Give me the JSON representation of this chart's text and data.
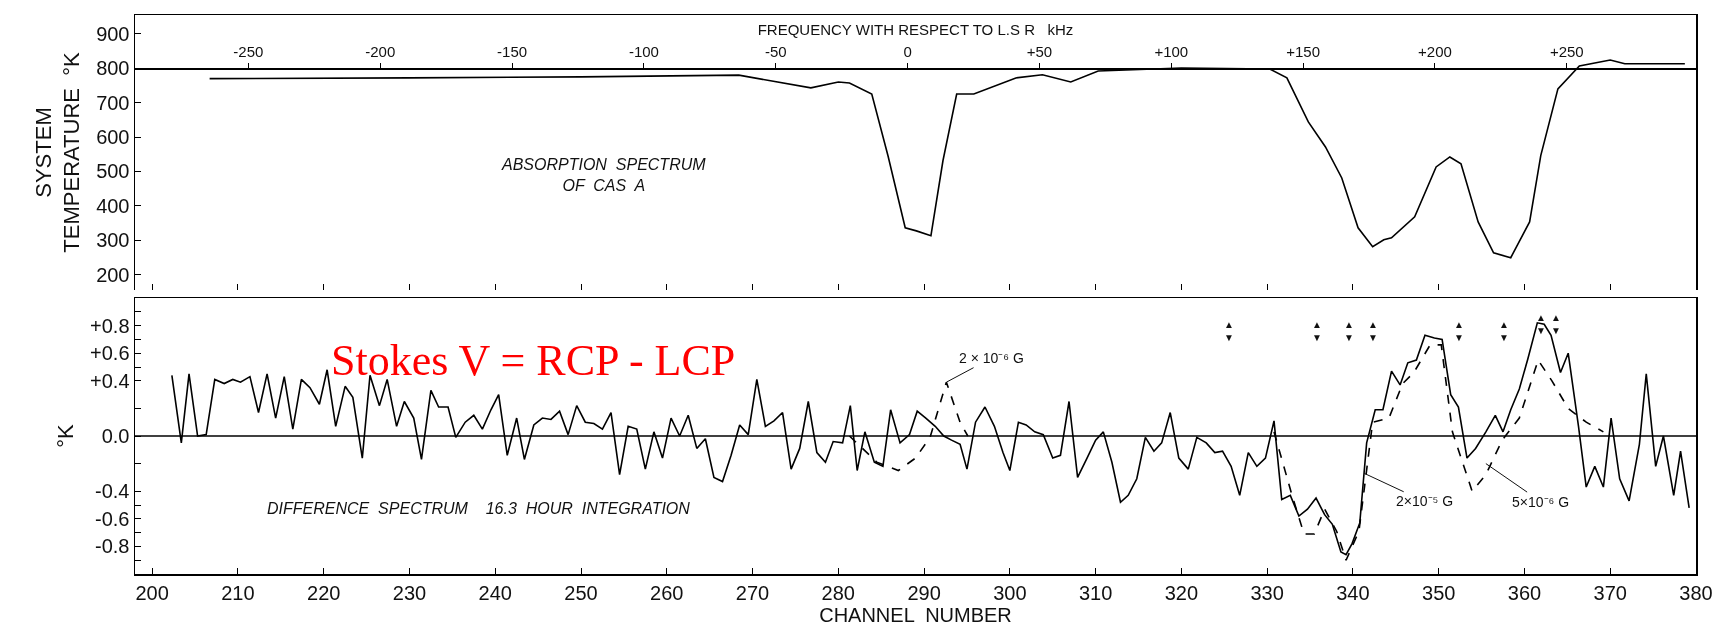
{
  "chart_data": [
    {
      "type": "line",
      "ylabel": "SYSTEM\nTEMPERATURE  °K",
      "x2label": "FREQUENCY WITH RESPECT TO L.S R   kHz",
      "xlim": [
        198,
        380
      ],
      "ylim": [
        155,
        955
      ],
      "x2lim": [
        -293,
        299
      ],
      "tick_labels": "y",
      "xticks": [
        {
          "value": 200,
          "label": null
        },
        {
          "value": 210,
          "label": null
        },
        {
          "value": 220,
          "label": null
        },
        {
          "value": 230,
          "label": null
        },
        {
          "value": 240,
          "label": null
        },
        {
          "value": 250,
          "label": null
        },
        {
          "value": 260,
          "label": null
        },
        {
          "value": 270,
          "label": null
        },
        {
          "value": 280,
          "label": null
        },
        {
          "value": 290,
          "label": null
        },
        {
          "value": 300,
          "label": null
        },
        {
          "value": 310,
          "label": null
        },
        {
          "value": 320,
          "label": null
        },
        {
          "value": 330,
          "label": null
        },
        {
          "value": 340,
          "label": null
        },
        {
          "value": 350,
          "label": null
        },
        {
          "value": 360,
          "label": null
        },
        {
          "value": 370,
          "label": null
        },
        {
          "value": 380,
          "label": null
        }
      ],
      "yticks": [
        200,
        300,
        400,
        500,
        600,
        700,
        800,
        900
      ],
      "x2ticks": [
        -250,
        -200,
        -150,
        -100,
        -50,
        0,
        {
          "value": 50,
          "label": "+50"
        },
        {
          "value": 100,
          "label": "+100"
        },
        {
          "value": 150,
          "label": "+150"
        },
        {
          "value": 200,
          "label": "+200"
        },
        {
          "value": 250,
          "label": "+250"
        }
      ],
      "annotations": [
        "ABSORPTION  SPECTRUM\nOF  CAS  A"
      ],
      "series": [
        {
          "color": "#000000",
          "x": [
            206.7,
            230,
            250,
            268.4,
            276.8,
            280.0,
            281.3,
            283.9,
            285.8,
            287.8,
            289.1,
            290.8,
            292.2,
            293.8,
            295.8,
            300.7,
            303.8,
            307.1,
            310.3,
            320.0,
            330.3,
            332.3,
            334.8,
            336.8,
            338.7,
            340.6,
            342.3,
            343.6,
            344.5,
            347.2,
            349.7,
            351.3,
            352.6,
            354.6,
            356.4,
            358.4,
            360.6,
            361.9,
            363.9,
            366.4,
            370.0,
            371.7,
            378.7
          ],
          "values": [
            770,
            772,
            775,
            780,
            743,
            760,
            757,
            725,
            545,
            336,
            327,
            313,
            531,
            725,
            725,
            772,
            781,
            760,
            792,
            801,
            798,
            772,
            644,
            571,
            481,
            336,
            281,
            301,
            307,
            368,
            513,
            542,
            522,
            353,
            263,
            249,
            353,
            546,
            740,
            807,
            824,
            813,
            813
          ]
        }
      ]
    },
    {
      "type": "line",
      "xlabel": "CHANNEL  NUMBER",
      "ylabel": "°K",
      "xlim": [
        198,
        380
      ],
      "ylim": [
        -1.0,
        1.0
      ],
      "xticks": [
        200,
        210,
        220,
        230,
        240,
        250,
        260,
        270,
        280,
        290,
        300,
        310,
        320,
        330,
        340,
        350,
        360,
        370,
        380
      ],
      "yticks": [
        {
          "value": 0.9,
          "label": null
        },
        {
          "value": 0.8,
          "label": "+0.8"
        },
        {
          "value": 0.7,
          "label": null
        },
        {
          "value": 0.6,
          "label": "+0.6"
        },
        {
          "value": 0.5,
          "label": null
        },
        {
          "value": 0.4,
          "label": "+0.4"
        },
        {
          "value": 0.2,
          "label": null
        },
        {
          "value": 0,
          "label": "0.0"
        },
        {
          "value": -0.2,
          "label": null
        },
        {
          "value": -0.4,
          "label": "-0.4"
        },
        {
          "value": -0.5,
          "label": null
        },
        {
          "value": -0.6,
          "label": "-0.6"
        },
        {
          "value": -0.7,
          "label": null
        },
        {
          "value": -0.8,
          "label": "-0.8"
        },
        {
          "value": -0.9,
          "label": null
        }
      ],
      "ref_lines": [
        {
          "axis": "y",
          "value": 0
        }
      ],
      "annotations": [
        "DIFFERENCE  SPECTRUM    16.3  HOUR  INTEGRATION",
        "Stokes V = RCP - LCP",
        {
          "text": "2 × 10⁻⁶ G",
          "x": 292.6,
          "y": 0.39
        },
        {
          "text": "2×10⁻⁵ G",
          "x": 341.3,
          "y": -0.27
        },
        {
          "text": "5×10⁻⁶ G",
          "x": 355.5,
          "y": -0.2
        },
        "▲\n▼",
        "▲\n▼",
        "▲\n▼",
        "▲\n▼",
        "▲\n▼",
        "▲\n▼",
        "▲\n▼",
        "▲\n▼"
      ],
      "series": [
        {
          "color": "#000000",
          "x": [
            202.3,
            203.4,
            204.3,
            205.3,
            206.3,
            207.3,
            208.4,
            209.4,
            210.3,
            211.4,
            212.4,
            213.4,
            214.4,
            215.4,
            216.4,
            217.4,
            218.4,
            219.5,
            220.4,
            221.4,
            222.5,
            223.4,
            224.5,
            225.4,
            226.5,
            227.4,
            228.5,
            229.4,
            230.5,
            231.4,
            232.5,
            233.4,
            234.5,
            235.4,
            236.5,
            237.5,
            238.5,
            239.5,
            240.4,
            241.4,
            242.5,
            243.4,
            244.5,
            245.5,
            246.5,
            247.5,
            248.5,
            249.5,
            250.5,
            251.5,
            252.5,
            253.5,
            254.5,
            255.5,
            256.5,
            257.5,
            258.5,
            259.5,
            260.5,
            261.5,
            262.5,
            263.5,
            264.5,
            265.5,
            266.5,
            267.5,
            268.5,
            269.5,
            270.5,
            271.5,
            272.5,
            273.5,
            274.5,
            275.5,
            276.5,
            277.5,
            278.5,
            279.4,
            280.5,
            281.4,
            282.2,
            283.1,
            284.2,
            285.2,
            286.1,
            287.2,
            288.3,
            289.2,
            290.2,
            291.3,
            292.3,
            293.2,
            294.2,
            295.0,
            296.0,
            297.1,
            298.2,
            299.2,
            300.0,
            301.0,
            301.9,
            302.9,
            303.9,
            305.0,
            305.9,
            306.9,
            307.9,
            309.0,
            310.0,
            310.9,
            311.9,
            312.9,
            313.8,
            314.8,
            315.8,
            316.8,
            317.7,
            318.7,
            319.7,
            320.8,
            321.8,
            322.9,
            323.9,
            324.8,
            325.8,
            326.8,
            327.8,
            328.8,
            329.8,
            330.8,
            331.7,
            332.7,
            333.7,
            334.7,
            335.7,
            336.7,
            337.6,
            338.6,
            339.2,
            339.9,
            340.8,
            341.6,
            342.6,
            343.5,
            344.5,
            345.5,
            346.4,
            347.4,
            348.4,
            349.5,
            350.4,
            351.4,
            352.3,
            353.3,
            354.3,
            355.5,
            356.6,
            357.5,
            358.4,
            359.4,
            360.4,
            361.5,
            362.3,
            363.1,
            364.2,
            365.1,
            366.3,
            367.2,
            368.2,
            369.2,
            370.1,
            371.1,
            372.2,
            373.4,
            374.2,
            375.3,
            376.2,
            377.4,
            378.2,
            379.2
          ],
          "values": [
            0.44,
            -0.05,
            0.45,
            0.0,
            0.01,
            0.41,
            0.38,
            0.41,
            0.39,
            0.43,
            0.17,
            0.45,
            0.13,
            0.43,
            0.05,
            0.41,
            0.35,
            0.23,
            0.48,
            0.07,
            0.36,
            0.28,
            -0.16,
            0.44,
            0.22,
            0.41,
            0.07,
            0.25,
            0.13,
            -0.17,
            0.33,
            0.21,
            0.21,
            -0.01,
            0.1,
            0.15,
            0.05,
            0.19,
            0.3,
            -0.14,
            0.13,
            -0.17,
            0.08,
            0.13,
            0.12,
            0.18,
            0.01,
            0.22,
            0.1,
            0.09,
            0.05,
            0.17,
            -0.28,
            0.07,
            0.05,
            -0.24,
            0.03,
            -0.16,
            0.13,
            0.0,
            0.15,
            -0.09,
            -0.02,
            -0.3,
            -0.33,
            -0.14,
            0.08,
            0.01,
            0.41,
            0.07,
            0.11,
            0.17,
            -0.24,
            -0.09,
            0.25,
            -0.12,
            -0.19,
            -0.04,
            -0.05,
            0.22,
            -0.25,
            0.03,
            -0.19,
            -0.22,
            0.19,
            -0.05,
            0.01,
            0.18,
            0.13,
            0.07,
            0.0,
            -0.03,
            -0.06,
            -0.24,
            0.1,
            0.21,
            0.07,
            -0.12,
            -0.25,
            0.1,
            0.08,
            0.03,
            0.01,
            -0.16,
            -0.14,
            0.25,
            -0.3,
            -0.16,
            -0.03,
            0.03,
            -0.19,
            -0.48,
            -0.43,
            -0.31,
            -0.01,
            -0.11,
            -0.05,
            0.17,
            -0.16,
            -0.24,
            -0.01,
            -0.05,
            -0.12,
            -0.11,
            -0.22,
            -0.43,
            -0.12,
            -0.22,
            -0.16,
            0.11,
            -0.46,
            -0.43,
            -0.58,
            -0.53,
            -0.45,
            -0.57,
            -0.64,
            -0.84,
            -0.86,
            -0.78,
            -0.63,
            -0.05,
            0.19,
            0.19,
            0.47,
            0.37,
            0.53,
            0.55,
            0.73,
            0.71,
            0.7,
            0.3,
            0.21,
            -0.16,
            -0.09,
            0.03,
            0.15,
            0.03,
            0.19,
            0.34,
            0.56,
            0.82,
            0.81,
            0.73,
            0.46,
            0.6,
            0.07,
            -0.37,
            -0.22,
            -0.37,
            0.13,
            -0.31,
            -0.47,
            -0.06,
            0.45,
            -0.22,
            0.0,
            -0.43,
            -0.11,
            -0.52
          ]
        },
        {
          "color": "#000000",
          "line_style": "dashed",
          "x": [
            281.3,
            284.5,
            287.0,
            289.0,
            290.7,
            292.6,
            294.2,
            295.1
          ],
          "values": [
            0.0,
            -0.19,
            -0.25,
            -0.16,
            -0.01,
            0.39,
            0.1,
            0.0
          ]
        },
        {
          "color": "#000000",
          "line_style": "dashed",
          "x": [
            330.8,
            332.9,
            334.3,
            335.5,
            336.7,
            338.1,
            339.2,
            340.7,
            342.3,
            344.2,
            345.8,
            347.1,
            349.0,
            350.3,
            351.6,
            353.9,
            355.5,
            357.4,
            359.4,
            361.6,
            363.2,
            365.1,
            367.2,
            369.2
          ],
          "values": [
            0.03,
            -0.43,
            -0.71,
            -0.71,
            -0.53,
            -0.69,
            -0.9,
            -0.69,
            0.1,
            0.13,
            0.38,
            0.46,
            0.66,
            0.66,
            0.03,
            -0.4,
            -0.28,
            -0.03,
            0.13,
            0.55,
            0.4,
            0.2,
            0.1,
            0.03
          ]
        }
      ]
    }
  ]
}
